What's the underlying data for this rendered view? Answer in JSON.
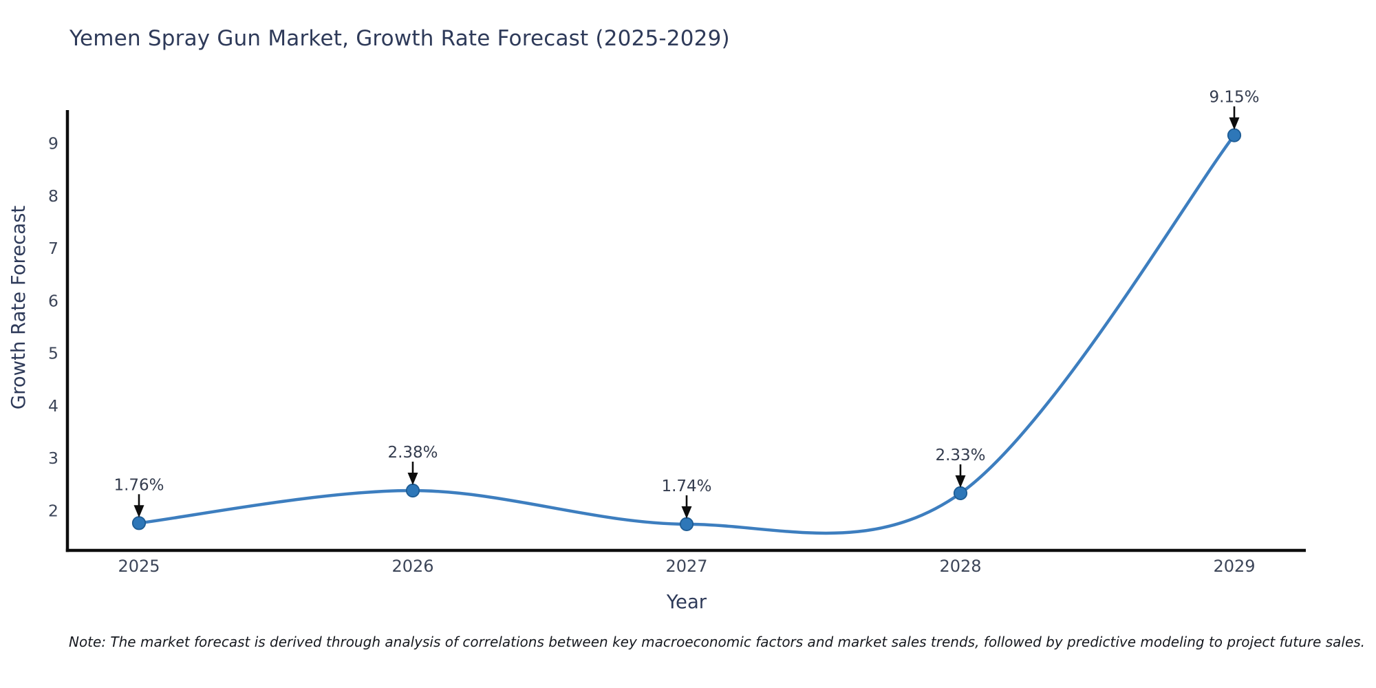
{
  "chart_data": {
    "type": "line",
    "title": "Yemen Spray Gun Market, Growth Rate Forecast (2025-2029)",
    "xlabel": "Year",
    "ylabel": "Growth Rate Forecast",
    "categories": [
      "2025",
      "2026",
      "2027",
      "2028",
      "2029"
    ],
    "series": [
      {
        "name": "Growth Rate Forecast",
        "values": [
          1.76,
          2.38,
          1.74,
          2.33,
          9.15
        ]
      }
    ],
    "point_labels": [
      "1.76%",
      "2.38%",
      "1.74%",
      "2.33%",
      "9.15%"
    ],
    "yticks": [
      "2",
      "3",
      "4",
      "5",
      "6",
      "7",
      "8",
      "9"
    ],
    "ylim": [
      1.24,
      9.63
    ],
    "grid": false,
    "legend": "none",
    "smooth": true,
    "colors": {
      "line": "#3d7ebf",
      "marker_fill": "#2e77b8",
      "marker_edge": "#1e5c94",
      "axis": "#0d0d0d",
      "arrow": "#0d0d0d",
      "title_text": "#2e3a59",
      "axis_label_text": "#2e3a59",
      "tick_text": "#3c4558",
      "annotation_text": "#343c4e",
      "note_text": "#16191f",
      "background": "#ffffff"
    }
  },
  "footnote": {
    "text": "Note: The market forecast is derived through analysis of correlations between key macroeconomic factors and market sales trends, followed by predictive modeling to project future sales."
  }
}
